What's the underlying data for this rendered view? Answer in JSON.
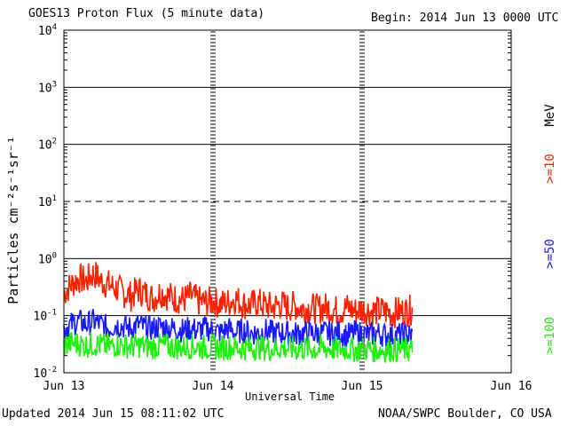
{
  "header": {
    "title": "GOES13 Proton Flux (5 minute data)",
    "begin": "Begin: 2014 Jun 13 0000 UTC"
  },
  "footer": {
    "updated": "Updated 2014 Jun 15 08:11:02 UTC",
    "credit": "NOAA/SWPC Boulder, CO USA"
  },
  "chart_data": {
    "type": "line",
    "title": "GOES13 Proton Flux (5 minute data)",
    "xlabel": "Universal Time",
    "ylabel": "Particles cm⁻²s⁻¹sr⁻¹",
    "yscale": "log",
    "ylim": [
      0.01,
      10000
    ],
    "xlim": [
      0,
      3
    ],
    "x_ticks": [
      "Jun 13",
      "Jun 14",
      "Jun 15",
      "Jun 16"
    ],
    "y_ticks": [
      {
        "base": "10",
        "exp": "-2"
      },
      {
        "base": "10",
        "exp": "-1"
      },
      {
        "base": "10",
        "exp": "0"
      },
      {
        "base": "10",
        "exp": "1"
      },
      {
        "base": "10",
        "exp": "2"
      },
      {
        "base": "10",
        "exp": "3"
      },
      {
        "base": "10",
        "exp": "4"
      }
    ],
    "threshold_line": 10,
    "legend_unit": "MeV",
    "legend_placement": "right",
    "series": [
      {
        "name": ">=10",
        "color": "#ff2000",
        "x": [
          0.0,
          0.05,
          0.1,
          0.15,
          0.2,
          0.25,
          0.3,
          0.35,
          0.4,
          0.45,
          0.5,
          0.55,
          0.6,
          0.65,
          0.7,
          0.75,
          0.8,
          0.85,
          0.9,
          0.95,
          1.0,
          1.05,
          1.1,
          1.15,
          1.2,
          1.25,
          1.3,
          1.35,
          1.4,
          1.45,
          1.5,
          1.55,
          1.6,
          1.65,
          1.7,
          1.75,
          1.8,
          1.85,
          1.9,
          1.95,
          2.0,
          2.05,
          2.1,
          2.15,
          2.2,
          2.25,
          2.3,
          2.34
        ],
        "y": [
          0.25,
          0.35,
          0.45,
          0.4,
          0.55,
          0.4,
          0.35,
          0.3,
          0.25,
          0.22,
          0.28,
          0.24,
          0.2,
          0.26,
          0.22,
          0.2,
          0.19,
          0.22,
          0.18,
          0.17,
          0.18,
          0.16,
          0.17,
          0.2,
          0.16,
          0.15,
          0.17,
          0.15,
          0.14,
          0.16,
          0.14,
          0.15,
          0.13,
          0.14,
          0.13,
          0.14,
          0.13,
          0.12,
          0.14,
          0.12,
          0.13,
          0.12,
          0.12,
          0.12,
          0.11,
          0.12,
          0.12,
          0.13
        ]
      },
      {
        "name": ">=50",
        "color": "#1a1aff",
        "x": [
          0.0,
          0.05,
          0.1,
          0.15,
          0.2,
          0.25,
          0.3,
          0.35,
          0.4,
          0.45,
          0.5,
          0.55,
          0.6,
          0.65,
          0.7,
          0.75,
          0.8,
          0.85,
          0.9,
          0.95,
          1.0,
          1.05,
          1.1,
          1.15,
          1.2,
          1.25,
          1.3,
          1.35,
          1.4,
          1.45,
          1.5,
          1.55,
          1.6,
          1.65,
          1.7,
          1.75,
          1.8,
          1.85,
          1.9,
          1.95,
          2.0,
          2.05,
          2.1,
          2.15,
          2.2,
          2.25,
          2.3,
          2.34
        ],
        "y": [
          0.06,
          0.07,
          0.08,
          0.07,
          0.08,
          0.07,
          0.06,
          0.07,
          0.065,
          0.06,
          0.07,
          0.06,
          0.06,
          0.065,
          0.06,
          0.06,
          0.055,
          0.06,
          0.055,
          0.06,
          0.055,
          0.05,
          0.06,
          0.05,
          0.055,
          0.05,
          0.05,
          0.055,
          0.05,
          0.05,
          0.05,
          0.048,
          0.05,
          0.05,
          0.048,
          0.05,
          0.048,
          0.05,
          0.045,
          0.05,
          0.048,
          0.046,
          0.05,
          0.046,
          0.045,
          0.046,
          0.045,
          0.045
        ]
      },
      {
        "name": ">=100",
        "color": "#22ee11",
        "x": [
          0.0,
          0.05,
          0.1,
          0.15,
          0.2,
          0.25,
          0.3,
          0.35,
          0.4,
          0.45,
          0.5,
          0.55,
          0.6,
          0.65,
          0.7,
          0.75,
          0.8,
          0.85,
          0.9,
          0.95,
          1.0,
          1.05,
          1.1,
          1.15,
          1.2,
          1.25,
          1.3,
          1.35,
          1.4,
          1.45,
          1.5,
          1.55,
          1.6,
          1.65,
          1.7,
          1.75,
          1.8,
          1.85,
          1.9,
          1.95,
          2.0,
          2.05,
          2.1,
          2.15,
          2.2,
          2.25,
          2.3,
          2.34
        ],
        "y": [
          0.03,
          0.033,
          0.032,
          0.03,
          0.032,
          0.03,
          0.029,
          0.031,
          0.03,
          0.029,
          0.03,
          0.029,
          0.028,
          0.03,
          0.029,
          0.028,
          0.028,
          0.029,
          0.028,
          0.028,
          0.028,
          0.027,
          0.028,
          0.028,
          0.027,
          0.027,
          0.028,
          0.027,
          0.026,
          0.027,
          0.027,
          0.026,
          0.027,
          0.026,
          0.026,
          0.027,
          0.026,
          0.026,
          0.026,
          0.025,
          0.026,
          0.026,
          0.025,
          0.025,
          0.026,
          0.025,
          0.025,
          0.025
        ]
      }
    ]
  }
}
